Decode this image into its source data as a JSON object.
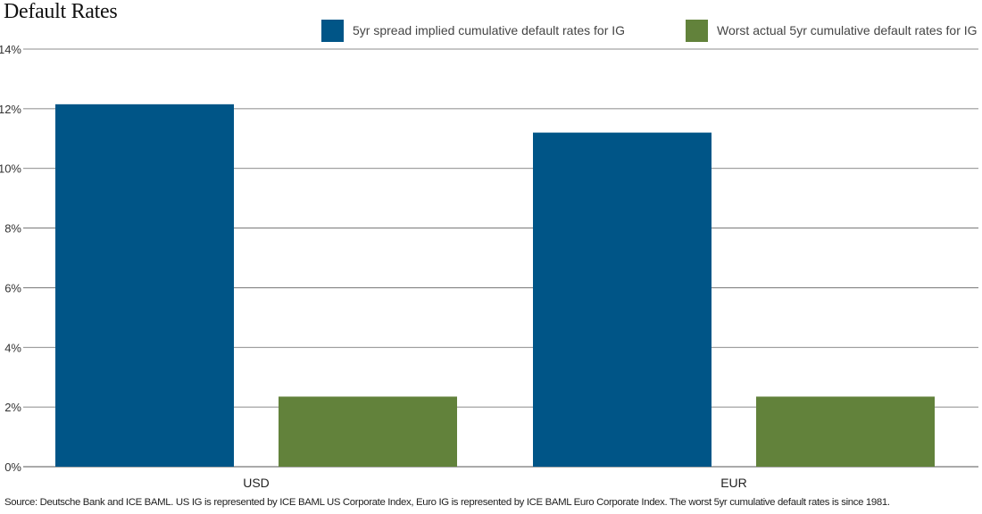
{
  "chart_data": {
    "type": "bar",
    "title": "Default Rates",
    "categories": [
      "USD",
      "EUR"
    ],
    "series": [
      {
        "name": "5yr spread implied cumulative default rates for IG",
        "values": [
          12.15,
          11.2
        ],
        "color": "#005587"
      },
      {
        "name": "Worst actual 5yr cumulative default rates for IG",
        "values": [
          2.35,
          2.35
        ],
        "color": "#62823b"
      }
    ],
    "ylim": [
      0,
      14
    ],
    "yticks": [
      "0%",
      "2%",
      "4%",
      "6%",
      "8%",
      "10%",
      "12%",
      "14%"
    ],
    "ytick_values": [
      0,
      2,
      4,
      6,
      8,
      10,
      12,
      14
    ],
    "grid": true,
    "legend_position": "top-right",
    "xlabel": "",
    "ylabel": ""
  },
  "footer": {
    "source": "Source: Deutsche Bank and ICE BAML. US IG is represented by ICE BAML US Corporate Index, Euro IG is represented by ICE BAML Euro Corporate Index. The worst 5yr cumulative default rates is since 1981."
  }
}
